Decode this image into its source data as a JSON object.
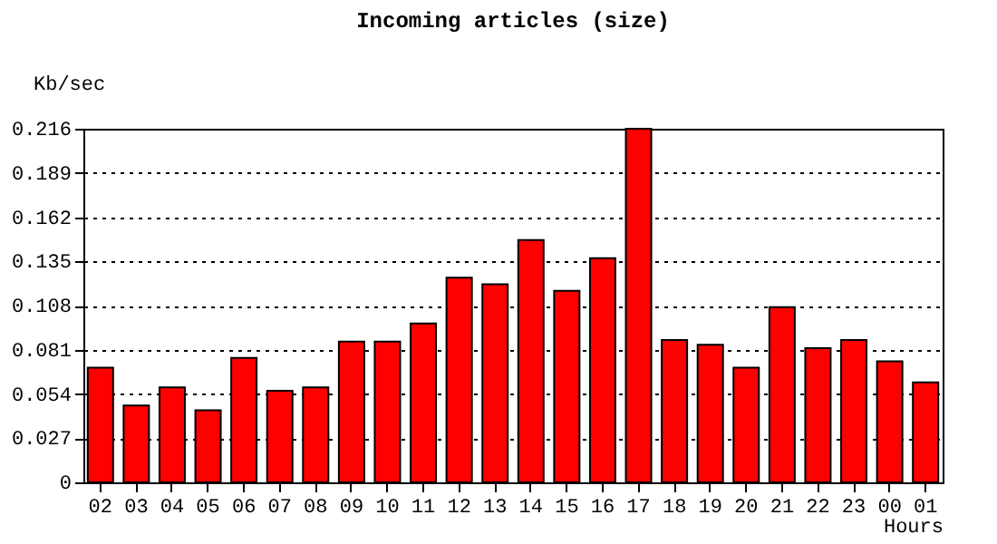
{
  "chart_data": {
    "type": "bar",
    "title": "Incoming articles (size)",
    "xlabel": "Hours",
    "ylabel": "Kb/sec",
    "categories": [
      "02",
      "03",
      "04",
      "05",
      "06",
      "07",
      "08",
      "09",
      "10",
      "11",
      "12",
      "13",
      "14",
      "15",
      "16",
      "17",
      "18",
      "19",
      "20",
      "21",
      "22",
      "23",
      "00",
      "01"
    ],
    "values": [
      0.07,
      0.047,
      0.058,
      0.044,
      0.076,
      0.056,
      0.058,
      0.086,
      0.086,
      0.097,
      0.125,
      0.121,
      0.148,
      0.117,
      0.137,
      0.216,
      0.087,
      0.084,
      0.07,
      0.107,
      0.082,
      0.087,
      0.074,
      0.061
    ],
    "color": "#ff0000",
    "ylim": [
      0,
      0.216
    ],
    "yticks": [
      0,
      0.027,
      0.054,
      0.081,
      0.108,
      0.135,
      0.162,
      0.189,
      0.216
    ],
    "grid": "y"
  }
}
